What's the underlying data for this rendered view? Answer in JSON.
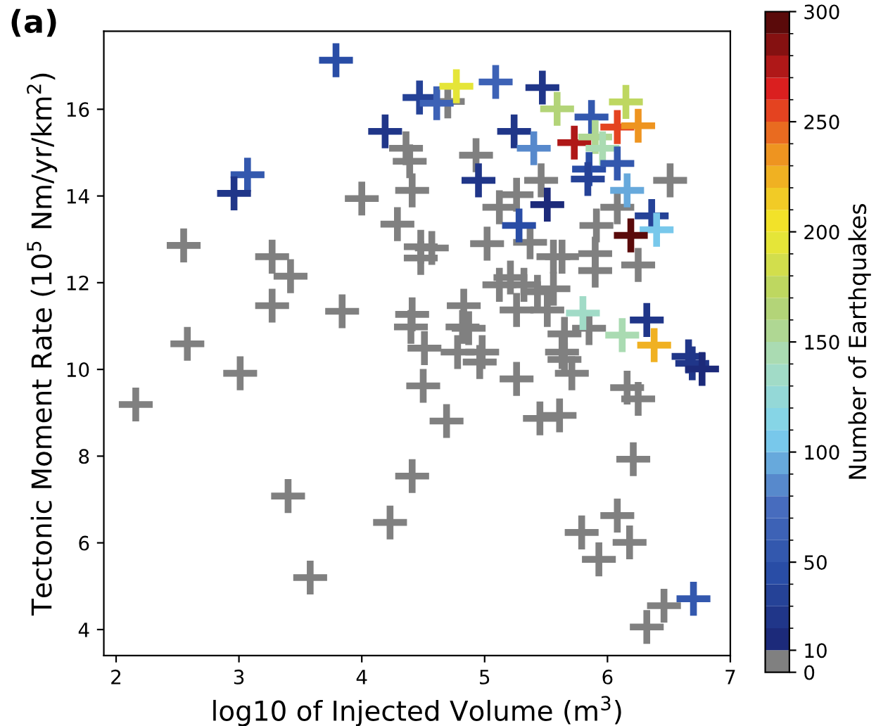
{
  "chart_data": {
    "type": "scatter",
    "title": "(a)",
    "xlabel": "log10 of Injected Volume (m$^{3}$)",
    "ylabel": "Tectonic Moment Rate (10$^{5}$ Nm/yr/km$^{2}$)",
    "clabel": "Number of Earthquakes",
    "x": [
      4.7,
      2.55,
      3.27,
      3.42,
      3.27,
      2.58,
      3.84,
      4.0,
      4.36,
      4.39,
      4.41,
      4.29,
      4.48,
      4.57,
      4.48,
      4.41,
      4.4,
      4.51,
      4.83,
      4.82,
      4.78,
      4.93,
      6.51,
      5.46,
      5.26,
      5.12,
      6.08,
      5.91,
      5.02,
      5.37,
      5.56,
      5.63,
      5.9,
      6.25,
      5.21,
      5.12,
      5.32,
      5.43,
      5.56,
      5.9,
      5.26,
      5.51,
      5.85,
      4.87,
      5.65,
      4.98,
      5.63,
      4.96,
      5.26,
      5.65,
      5.71,
      6.16,
      6.25,
      5.45,
      5.61,
      6.21,
      6.08,
      5.79,
      6.18,
      5.93,
      6.46,
      6.32,
      2.16,
      3.01,
      3.4,
      3.58,
      4.23,
      4.41,
      4.5,
      4.69,
      3.79,
      4.47,
      4.61,
      4.77,
      4.19,
      3.07,
      2.96,
      5.09,
      5.47,
      5.59,
      5.87,
      6.15,
      6.08,
      6.25,
      5.73,
      5.9,
      5.96,
      5.24,
      5.4,
      4.95,
      5.85,
      5.84,
      6.08,
      6.16,
      5.51,
      5.28,
      6.36,
      6.4,
      6.19,
      5.8,
      6.12,
      6.32,
      6.38,
      6.66,
      6.69,
      6.77,
      6.7
    ],
    "values": [
      16.18,
      12.86,
      12.6,
      12.15,
      11.47,
      10.59,
      11.34,
      13.94,
      15.1,
      14.8,
      14.13,
      13.35,
      12.83,
      12.8,
      12.57,
      11.27,
      10.98,
      10.49,
      11.47,
      10.98,
      10.4,
      14.94,
      14.36,
      14.36,
      14.03,
      13.74,
      13.74,
      13.32,
      12.9,
      12.93,
      12.6,
      12.6,
      12.67,
      12.41,
      12.12,
      11.95,
      11.95,
      11.79,
      11.86,
      12.28,
      11.37,
      11.37,
      10.95,
      10.95,
      10.82,
      10.4,
      10.4,
      10.17,
      9.78,
      10.23,
      9.91,
      9.58,
      9.32,
      8.87,
      8.94,
      7.93,
      6.63,
      6.24,
      6.01,
      5.62,
      4.55,
      4.06,
      9.19,
      9.91,
      7.08,
      5.2,
      6.47,
      7.54,
      9.62,
      8.81,
      17.13,
      16.27,
      16.14,
      16.53,
      15.49,
      14.49,
      14.06,
      16.63,
      16.5,
      16.01,
      15.82,
      16.17,
      15.59,
      15.62,
      15.23,
      15.36,
      15.1,
      15.49,
      15.1,
      14.36,
      14.62,
      14.39,
      14.75,
      14.13,
      13.8,
      13.32,
      13.54,
      13.22,
      13.09,
      11.3,
      10.79,
      11.14,
      10.56,
      10.3,
      10.14,
      10.01,
      4.71
    ],
    "cvalues": [
      0,
      0,
      0,
      0,
      0,
      0,
      0,
      0,
      0,
      0,
      0,
      0,
      0,
      0,
      0,
      0,
      0,
      0,
      0,
      0,
      0,
      0,
      0,
      0,
      0,
      0,
      0,
      0,
      0,
      0,
      0,
      0,
      0,
      0,
      0,
      0,
      0,
      0,
      0,
      0,
      0,
      0,
      0,
      0,
      0,
      0,
      0,
      0,
      0,
      0,
      0,
      0,
      0,
      0,
      0,
      0,
      0,
      0,
      0,
      0,
      0,
      0,
      0,
      0,
      0,
      0,
      0,
      0,
      0,
      0,
      45,
      30,
      60,
      190,
      25,
      50,
      20,
      60,
      20,
      165,
      55,
      175,
      250,
      230,
      270,
      150,
      140,
      25,
      80,
      20,
      45,
      30,
      50,
      95,
      15,
      45,
      30,
      105,
      295,
      130,
      140,
      20,
      220,
      25,
      20,
      15,
      50
    ],
    "xlim": [
      1.9,
      7.0
    ],
    "ylim": [
      3.4,
      17.8
    ],
    "xticks": [
      2,
      3,
      4,
      5,
      6,
      7
    ],
    "yticks": [
      4,
      6,
      8,
      10,
      12,
      14,
      16
    ],
    "clim": [
      0,
      300
    ],
    "cticks": [
      0,
      10,
      50,
      100,
      150,
      200,
      250,
      300
    ],
    "marker": "cross",
    "grid": false
  }
}
